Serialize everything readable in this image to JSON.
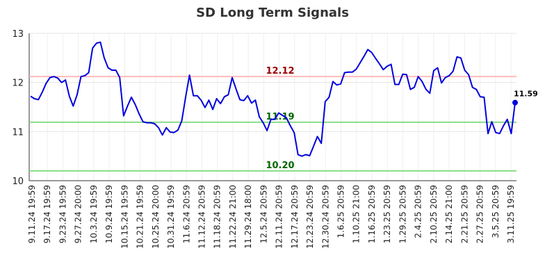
{
  "chart_data": {
    "type": "line",
    "title": "SD Long Term Signals",
    "xlabel": "",
    "ylabel": "",
    "ylim": [
      10,
      13
    ],
    "yticks": [
      10,
      11,
      12,
      13
    ],
    "grid": true,
    "line_color": "#0000dd",
    "x_tick_labels": [
      "9.11.24 19:59",
      "9.17.24 19:59",
      "9.23.24 19:59",
      "9.27.24 20:00",
      "10.3.24 19:59",
      "10.9.24 19:59",
      "10.15.24 19:59",
      "10.21.24 19:59",
      "10.25.24 20:00",
      "10.31.24 19:59",
      "11.6.24 20:59",
      "11.12.24 20:59",
      "11.18.24 20:59",
      "11.22.24 21:00",
      "11.29.24 18:00",
      "12.5.24 20:59",
      "12.11.24 20:59",
      "12.17.24 20:59",
      "12.23.24 20:59",
      "12.30.24 20:59",
      "1.6.25 20:59",
      "1.10.25 21:00",
      "1.16.25 20:59",
      "1.23.25 20:59",
      "1.29.25 20:59",
      "2.4.25 20:59",
      "2.10.25 20:59",
      "2.14.25 21:00",
      "2.21.25 20:59",
      "2.27.25 20:59",
      "3.5.25 20:59",
      "3.11.25 19:59"
    ],
    "values": [
      11.72,
      11.67,
      11.65,
      11.8,
      11.98,
      12.1,
      12.12,
      12.09,
      12.0,
      12.05,
      11.72,
      11.52,
      11.75,
      12.12,
      12.14,
      12.2,
      12.7,
      12.8,
      12.82,
      12.5,
      12.3,
      12.25,
      12.25,
      12.1,
      11.32,
      11.52,
      11.7,
      11.55,
      11.36,
      11.2,
      11.18,
      11.18,
      11.16,
      11.08,
      10.93,
      11.08,
      10.99,
      10.98,
      11.03,
      11.22,
      11.7,
      12.15,
      11.73,
      11.73,
      11.64,
      11.49,
      11.64,
      11.45,
      11.67,
      11.57,
      11.71,
      11.75,
      12.1,
      11.87,
      11.65,
      11.63,
      11.73,
      11.58,
      11.64,
      11.3,
      11.18,
      11.02,
      11.25,
      11.25,
      11.38,
      11.33,
      11.28,
      11.12,
      10.98,
      10.53,
      10.5,
      10.53,
      10.51,
      10.7,
      10.9,
      10.76,
      11.61,
      11.7,
      12.02,
      11.95,
      11.97,
      12.2,
      12.21,
      12.21,
      12.27,
      12.4,
      12.53,
      12.67,
      12.61,
      12.49,
      12.38,
      12.26,
      12.33,
      12.37,
      11.96,
      11.96,
      12.17,
      12.16,
      11.86,
      11.9,
      12.12,
      12.02,
      11.86,
      11.78,
      12.24,
      12.3,
      11.99,
      12.1,
      12.14,
      12.23,
      12.52,
      12.5,
      12.25,
      12.16,
      11.9,
      11.86,
      11.71,
      11.7,
      10.96,
      11.2,
      10.98,
      10.96,
      11.12,
      11.25,
      10.96,
      11.59
    ],
    "reference_lines": [
      {
        "value": 12.12,
        "label": "12.12",
        "color": "#ffbbbb",
        "label_color": "#990000"
      },
      {
        "value": 11.19,
        "label": "11.19",
        "color": "#88dd88",
        "label_color": "#006600"
      },
      {
        "value": 10.2,
        "label": "10.20",
        "color": "#88dd88",
        "label_color": "#006600"
      }
    ],
    "last_value_label": "11.59"
  }
}
